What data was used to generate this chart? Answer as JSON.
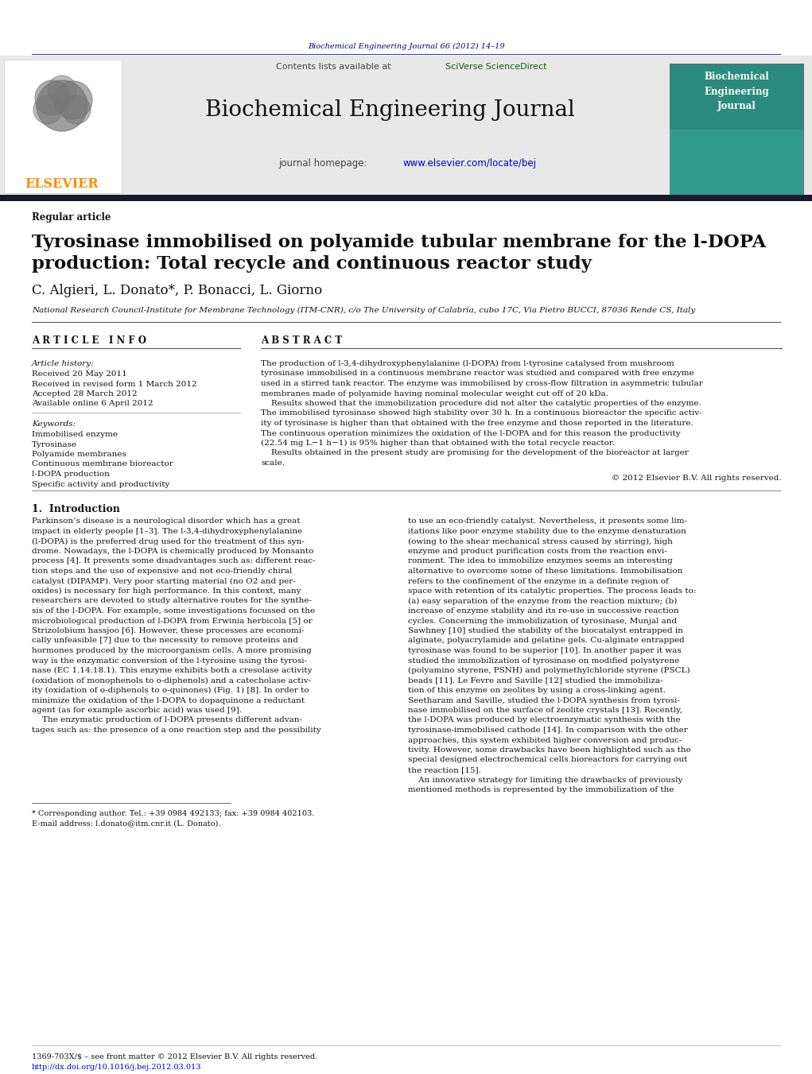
{
  "fig_width": 10.21,
  "fig_height": 13.51,
  "bg_color": "#ffffff",
  "top_header_text": "Biochemical Engineering Journal 66 (2012) 14–19",
  "top_header_color": "#00008B",
  "journal_header_bg": "#e8e8e8",
  "journal_name": "Biochemical Engineering Journal",
  "sciverse_color": "#006400",
  "homepage_url_color": "#0000CD",
  "elsevier_color": "#FF8C00",
  "article_type": "Regular article",
  "title_line1": "Tyrosinase immobilised on polyamide tubular membrane for the l-DOPA",
  "title_line2": "production: Total recycle and continuous reactor study",
  "authors": "C. Algieri, L. Donato*, P. Bonacci, L. Giorno",
  "affiliation": "National Research Council-Institute for Membrane Technology (ITM-CNR), c/o The University of Calabria, cubo 17C, Via Pietro BUCCI, 87036 Rende CS, Italy",
  "article_info_header": "A R T I C L E   I N F O",
  "abstract_header": "A B S T R A C T",
  "article_history_label": "Article history:",
  "received": "Received 20 May 2011",
  "revised": "Received in revised form 1 March 2012",
  "accepted": "Accepted 28 March 2012",
  "online": "Available online 6 April 2012",
  "keywords_label": "Keywords:",
  "keyword1": "Immobilised enzyme",
  "keyword2": "Tyrosinase",
  "keyword3": "Polyamide membranes",
  "keyword4": "Continuous membrane bioreactor",
  "keyword5": "l-DOPA production",
  "keyword6": "Specific activity and productivity",
  "abstract_text": "The production of l-3,4-dihydroxyphenylalanine (l-DOPA) from l-tyrosine catalysed from mushroom\ntyrosinase immobilised in a continuous membrane reactor was studied and compared with free enzyme\nused in a stirred tank reactor. The enzyme was immobilised by cross-flow filtration in asymmetric tubular\nmembranes made of polyamide having nominal molecular weight cut off of 20 kDa.\n    Results showed that the immobilization procedure did not alter the catalytic properties of the enzyme.\nThe immobilised tyrosinase showed high stability over 30 h. In a continuous bioreactor the specific activ-\nity of tyrosinase is higher than that obtained with the free enzyme and those reported in the literature.\nThe continuous operation minimizes the oxidation of the l-DOPA and for this reason the productivity\n(22.54 mg L−1 h−1) is 95% higher than that obtained with the total recycle reactor.\n    Results obtained in the present study are promising for the development of the bioreactor at larger\nscale.",
  "copyright": "© 2012 Elsevier B.V. All rights reserved.",
  "intro_header": "1.  Introduction",
  "intro_col1": "Parkinson’s disease is a neurological disorder which has a great\nimpact in elderly people [1–3]. The l-3,4-dihydroxyphenylalanine\n(l-DOPA) is the preferred drug used for the treatment of this syn-\ndrome. Nowadays, the l-DOPA is chemically produced by Monsanto\nprocess [4]. It presents some disadvantages such as: different reac-\ntion steps and the use of expensive and not eco-friendly chiral\ncatalyst (DIPAMP). Very poor starting material (no O2 and per-\noxides) is necessary for high performance. In this context, many\nresearchers are devoted to study alternative routes for the synthe-\nsis of the l-DOPA. For example, some investigations focussed on the\nmicrobiological production of l-DOPA from Erwinia herbicola [5] or\nStrizolobium hassjoo [6]. However, these processes are economi-\ncally unfeasible [7] due to the necessity to remove proteins and\nhormones produced by the microorganism cells. A more promising\nway is the enzymatic conversion of the l-tyrosine using the tyrosi-\nnase (EC 1.14.18.1). This enzyme exhibits both a cresolase activity\n(oxidation of monophenols to o-diphenols) and a catecholase activ-\nity (oxidation of o-diphenols to o-quinones) (Fig. 1) [8]. In order to\nminimize the oxidation of the l-DOPA to dopaquinone a reductant\nagent (as for example ascorbic acid) was used [9].\n    The enzymatic production of l-DOPA presents different advan-\ntages such as: the presence of a one reaction step and the possibility",
  "intro_col2": "to use an eco-friendly catalyst. Nevertheless, it presents some lim-\nitations like poor enzyme stability due to the enzyme denaturation\n(owing to the shear mechanical stress caused by stirring), high\nenzyme and product purification costs from the reaction envi-\nronment. The idea to immobilize enzymes seems an interesting\nalternative to overcome some of these limitations. Immobilisation\nrefers to the confinement of the enzyme in a definite region of\nspace with retention of its catalytic properties. The process leads to:\n(a) easy separation of the enzyme from the reaction mixture; (b)\nincrease of enzyme stability and its re-use in successive reaction\ncycles. Concerning the immobilization of tyrosinase, Munjal and\nSawhney [10] studied the stability of the biocatalyst entrapped in\nalginate, polyacrylamide and gelatine gels. Cu-alginate entrapped\ntyrosinase was found to be superior [10]. In another paper it was\nstudied the immobilization of tyrosinase on modified polystyrene\n(polyamino styrene, PSNH) and polymethylchloride styrene (PSCL)\nbeads [11]. Le Fevre and Saville [12] studied the immobiliza-\ntion of this enzyme on zeolites by using a cross-linking agent.\nSeetharam and Saville, studied the l-DOPA synthesis from tyrosi-\nnase immobilised on the surface of zeolite crystals [13]. Recently,\nthe l-DOPA was produced by electroenzymatic synthesis with the\ntyrosinase-immobilised cathode [14]. In comparison with the other\napproaches, this system exhibited higher conversion and produc-\ntivity. However, some drawbacks have been highlighted such as the\nspecial designed electrochemical cells bioreactors for carrying out\nthe reaction [15].\n    An innovative strategy for limiting the drawbacks of previously\nmentioned methods is represented by the immobilization of the",
  "footnote1": "* Corresponding author. Tel.: +39 0984 492133; fax: +39 0984 402103.",
  "footnote2": "E-mail address: l.donato@itm.cnr.it (L. Donato).",
  "footer1": "1369-703X/$ – see front matter © 2012 Elsevier B.V. All rights reserved.",
  "footer2": "http://dx.doi.org/10.1016/j.bej.2012.03.013"
}
